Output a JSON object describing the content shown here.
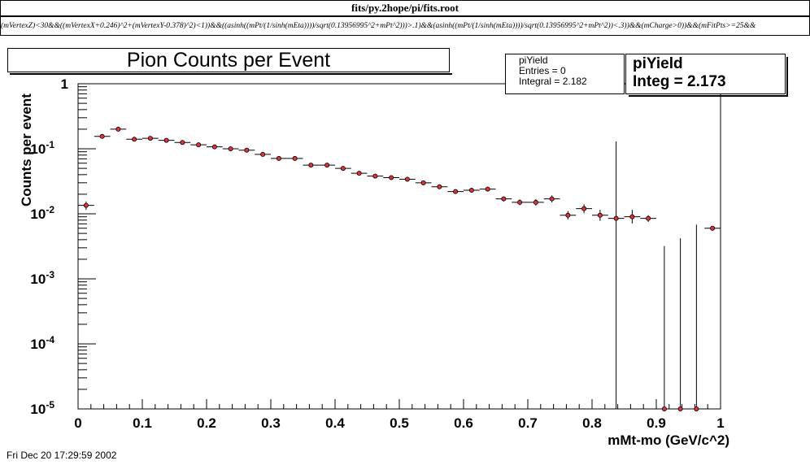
{
  "window": {
    "title": "fits/py.2hope/pi/fits.root",
    "cut_expression": "(mVertexZ)<30&&((mVertexX+0.246)^2+(mVertexY-0.378)^2)<1))&&((asinh((mPt/(1/sinh(mEta))))/sqrt(0.13956995^2+mPt^2)))>.1)&&(asinh((mPt/(1/sinh(mEta))))/sqrt(0.13956995^2+mPt^2))<.3))&&(mCharge>0))&&(mFitPts>=25&&"
  },
  "stats_small": {
    "name": "piYield",
    "entries": "Entries = 0",
    "integral": "Integral =  2.182"
  },
  "stats_big": {
    "name": "piYield",
    "integ": "Integ =  2.173"
  },
  "datestamp": "Fri Dec 20 17:29:59 2002",
  "colors": {
    "marker_fill": "#e83030",
    "axis": "#000000",
    "background": "#ffffff"
  },
  "chart_data": {
    "type": "scatter",
    "title": "Pion Counts per Event",
    "xlabel": "mMt-mo (GeV/c^2)",
    "ylabel": "Counts per event",
    "xlim": [
      0,
      1
    ],
    "ylim": [
      1e-05,
      1
    ],
    "log_y": true,
    "grid": false,
    "x_ticks": [
      "0",
      "0.1",
      "0.2",
      "0.3",
      "0.4",
      "0.5",
      "0.6",
      "0.7",
      "0.8",
      "0.9",
      "1"
    ],
    "y_ticks": [
      {
        "base": "1",
        "exp": ""
      },
      {
        "base": "10",
        "exp": "-1"
      },
      {
        "base": "10",
        "exp": "-2"
      },
      {
        "base": "10",
        "exp": "-3"
      },
      {
        "base": "10",
        "exp": "-4"
      },
      {
        "base": "10",
        "exp": "-5"
      }
    ],
    "bin_half_width": 0.0125,
    "series": [
      {
        "points": [
          {
            "x": 0.0125,
            "y": 0.0135,
            "ylo": 0.0115,
            "yhi": 0.0155
          },
          {
            "x": 0.0375,
            "y": 0.155
          },
          {
            "x": 0.0625,
            "y": 0.2
          },
          {
            "x": 0.0875,
            "y": 0.14
          },
          {
            "x": 0.1125,
            "y": 0.145
          },
          {
            "x": 0.1375,
            "y": 0.135
          },
          {
            "x": 0.1625,
            "y": 0.125
          },
          {
            "x": 0.1875,
            "y": 0.115
          },
          {
            "x": 0.2125,
            "y": 0.107
          },
          {
            "x": 0.2375,
            "y": 0.1
          },
          {
            "x": 0.2625,
            "y": 0.095
          },
          {
            "x": 0.2875,
            "y": 0.082
          },
          {
            "x": 0.3125,
            "y": 0.071
          },
          {
            "x": 0.3375,
            "y": 0.071
          },
          {
            "x": 0.3625,
            "y": 0.056
          },
          {
            "x": 0.3875,
            "y": 0.056
          },
          {
            "x": 0.4125,
            "y": 0.05
          },
          {
            "x": 0.4375,
            "y": 0.042
          },
          {
            "x": 0.4625,
            "y": 0.038
          },
          {
            "x": 0.4875,
            "y": 0.036
          },
          {
            "x": 0.5125,
            "y": 0.034
          },
          {
            "x": 0.5375,
            "y": 0.03
          },
          {
            "x": 0.5625,
            "y": 0.026
          },
          {
            "x": 0.5875,
            "y": 0.022
          },
          {
            "x": 0.6125,
            "y": 0.023
          },
          {
            "x": 0.6375,
            "y": 0.024
          },
          {
            "x": 0.6625,
            "y": 0.017,
            "ylo": 0.0155,
            "yhi": 0.0185
          },
          {
            "x": 0.6875,
            "y": 0.015,
            "ylo": 0.0136,
            "yhi": 0.0166
          },
          {
            "x": 0.7125,
            "y": 0.015,
            "ylo": 0.0134,
            "yhi": 0.0168
          },
          {
            "x": 0.7375,
            "y": 0.017,
            "ylo": 0.015,
            "yhi": 0.0192
          },
          {
            "x": 0.7625,
            "y": 0.0095,
            "ylo": 0.0082,
            "yhi": 0.011
          },
          {
            "x": 0.7875,
            "y": 0.012,
            "ylo": 0.0102,
            "yhi": 0.014
          },
          {
            "x": 0.8125,
            "y": 0.0095,
            "ylo": 0.0078,
            "yhi": 0.0115
          },
          {
            "x": 0.8375,
            "y": 0.0085,
            "ylo": 1e-05,
            "yhi": 0.13
          },
          {
            "x": 0.8625,
            "y": 0.009,
            "ylo": 0.0071,
            "yhi": 0.0115
          },
          {
            "x": 0.8875,
            "y": 0.0085,
            "ylo": 0.0075,
            "yhi": 0.0095
          },
          {
            "x": 0.9125,
            "y": 1e-05,
            "ylo": 1e-05,
            "yhi": 0.0032
          },
          {
            "x": 0.9375,
            "y": 1e-05,
            "ylo": 1e-05,
            "yhi": 0.0042
          },
          {
            "x": 0.9625,
            "y": 1e-05,
            "ylo": 1e-05,
            "yhi": 0.0068
          },
          {
            "x": 0.9875,
            "y": 0.006,
            "ylo": 0.0055,
            "yhi": 0.0065
          }
        ]
      }
    ]
  }
}
